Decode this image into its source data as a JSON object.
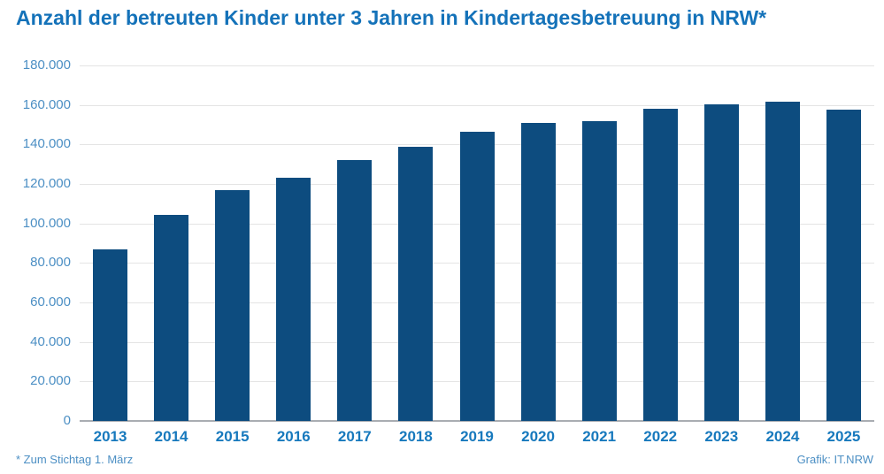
{
  "chart_data": {
    "type": "bar",
    "title": "Anzahl der betreuten Kinder unter 3 Jahren in Kindertagesbetreuung in NRW*",
    "categories": [
      "2013",
      "2014",
      "2015",
      "2016",
      "2017",
      "2018",
      "2019",
      "2020",
      "2021",
      "2022",
      "2023",
      "2024",
      "2025"
    ],
    "values": [
      87000,
      104500,
      117000,
      123000,
      132000,
      139000,
      146500,
      151000,
      152000,
      158000,
      160500,
      161500,
      157800
    ],
    "xlabel": "",
    "ylabel": "",
    "ylim": [
      0,
      180000
    ],
    "ytick_step": 20000,
    "yticks": [
      {
        "value": 0,
        "label": "0"
      },
      {
        "value": 20000,
        "label": "20.000"
      },
      {
        "value": 40000,
        "label": "40.000"
      },
      {
        "value": 60000,
        "label": "60.000"
      },
      {
        "value": 80000,
        "label": "80.000"
      },
      {
        "value": 100000,
        "label": "100.000"
      },
      {
        "value": 120000,
        "label": "120.000"
      },
      {
        "value": 140000,
        "label": "140.000"
      },
      {
        "value": 160000,
        "label": "160.000"
      },
      {
        "value": 180000,
        "label": "180.000"
      }
    ],
    "grid": "horizontal",
    "legend": "none"
  },
  "footer": {
    "footnote": "* Zum Stichtag 1. März",
    "credit": "Grafik: IT.NRW"
  },
  "colors": {
    "bar": "#0d4c7f",
    "title": "#1472b9",
    "x_label": "#1779bd",
    "y_label": "#4c8fc4",
    "footnote": "#4c8fc4",
    "gridline": "#e4e4e4",
    "baseline": "#a9adb2",
    "background": "#ffffff"
  }
}
